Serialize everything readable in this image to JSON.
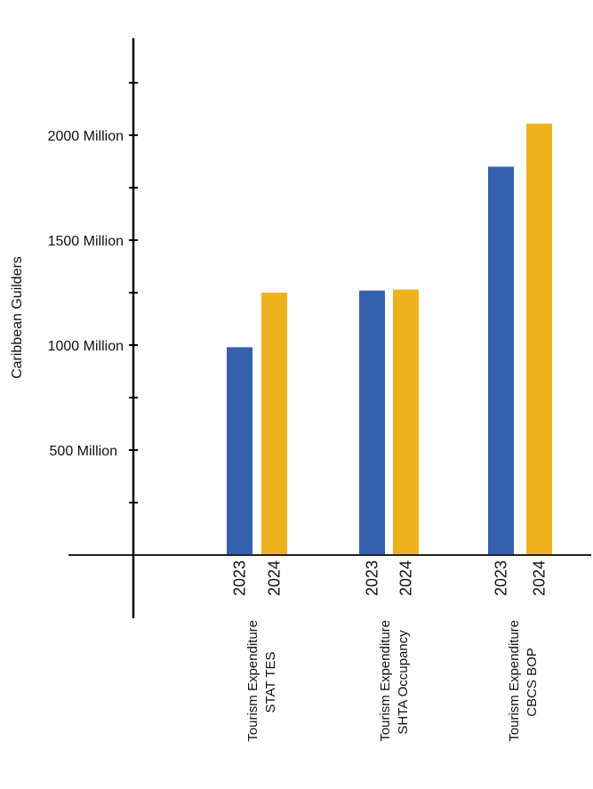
{
  "chart_data": {
    "type": "bar",
    "title": "",
    "xlabel": "",
    "ylabel": "Caribbean Guilders",
    "ylim": [
      0,
      2250
    ],
    "yticks": [
      250,
      500,
      750,
      1000,
      1250,
      1500,
      1750,
      2000,
      2250
    ],
    "ytick_labels": [
      {
        "value": 500,
        "label": "500 Million"
      },
      {
        "value": 1000,
        "label": "1000 Million"
      },
      {
        "value": 1500,
        "label": "1500 Million"
      },
      {
        "value": 2000,
        "label": "2000 Million"
      }
    ],
    "unit": "Million Caribbean Guilders",
    "grid": false,
    "legend": null,
    "categories": [
      {
        "line1": "Tourism Expenditure",
        "line2": "STAT TES"
      },
      {
        "line1": "Tourism Expenditure",
        "line2": "SHTA Occupancy"
      },
      {
        "line1": "Tourism Expenditure",
        "line2": "CBCS BOP"
      }
    ],
    "series": [
      {
        "name": "2023",
        "color": "#3660AE",
        "values": [
          990,
          1260,
          1850
        ]
      },
      {
        "name": "2024",
        "color": "#EEB21F",
        "values": [
          1250,
          1265,
          2055
        ]
      }
    ]
  }
}
